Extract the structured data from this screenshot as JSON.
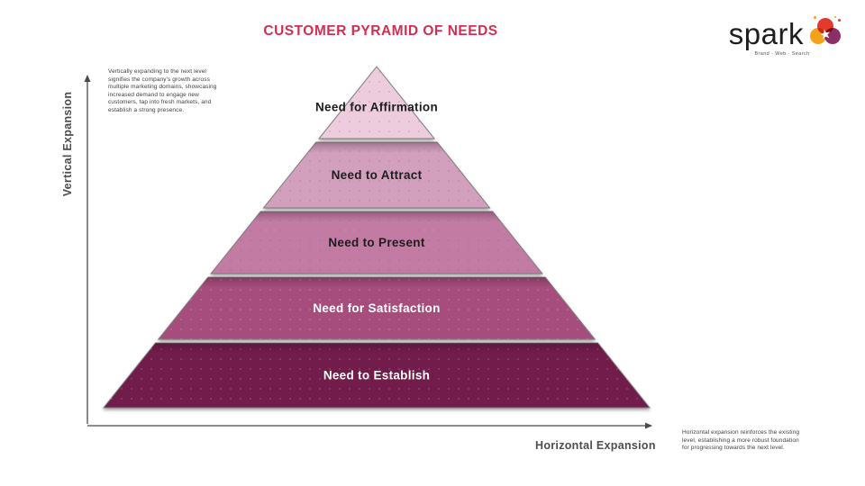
{
  "title": "CUSTOMER PYRAMID OF NEEDS",
  "title_color": "#d22e52",
  "logo": {
    "name": "spark",
    "tagline": "Brand · Web · Search",
    "star_icon": "★",
    "colors": {
      "red": "#e23a2d",
      "orange": "#f5a21b",
      "purple": "#8c2e68"
    }
  },
  "axes": {
    "vertical_label": "Vertical Expansion",
    "horizontal_label": "Horizontal Expansion",
    "color": "#4a4a4a"
  },
  "annotations": {
    "left": "Vertically expanding to the next level signifies the company's growth across multiple marketing domains, showcasing increased demand to engage new customers, tap into fresh markets, and establish a strong presence.",
    "right": "Horizontal expansion reinforces the existing level, establishing a more robust foundation for progressing towards the next level."
  },
  "chart_data": {
    "type": "pyramid",
    "title": "Customer Pyramid of Needs",
    "levels": [
      {
        "label": "Need for Affirmation",
        "fill": "#ecccdd",
        "text_color": "#1d1d1d"
      },
      {
        "label": "Need to Attract",
        "fill": "#d2a0bd",
        "text_color": "#1d1d1d"
      },
      {
        "label": "Need to Present",
        "fill": "#c27ba3",
        "text_color": "#1d1d1d"
      },
      {
        "label": "Need for Satisfaction",
        "fill": "#a64e7d",
        "text_color": "#ffffff"
      },
      {
        "label": "Need to Establish",
        "fill": "#711d4c",
        "text_color": "#ffffff"
      }
    ]
  }
}
